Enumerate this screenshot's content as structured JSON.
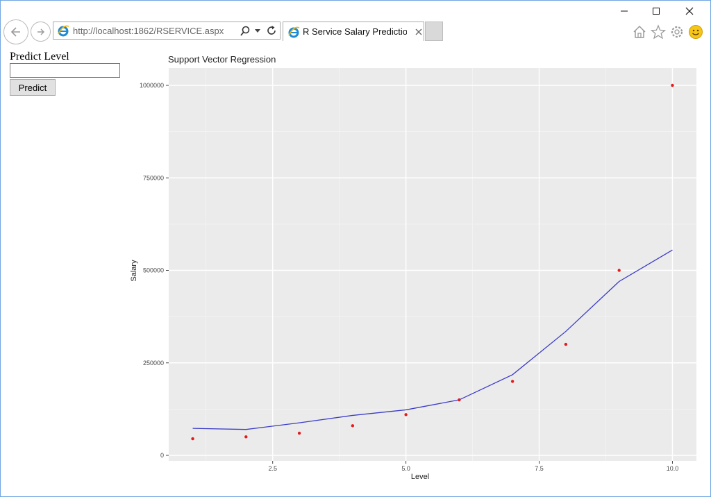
{
  "window": {
    "minimize_icon": "minimize-icon",
    "maximize_icon": "maximize-icon",
    "close_icon": "close-icon"
  },
  "browser": {
    "back_icon": "back-arrow-icon",
    "forward_icon": "forward-arrow-icon",
    "url": "http://localhost:1862/RSERVICE.aspx",
    "tab_title": "R Service Salary Prediction ...",
    "toolbar_icons": [
      "home-icon",
      "star-icon",
      "gear-icon",
      "smiley-icon"
    ]
  },
  "form": {
    "label": "Predict Level",
    "input_value": "",
    "button_label": "Predict"
  },
  "chart_data": {
    "type": "scatter",
    "title": "Support Vector Regression",
    "xlabel": "Level",
    "ylabel": "Salary",
    "xlim": [
      0.55,
      10.45
    ],
    "ylim": [
      0,
      1000000
    ],
    "x_ticks": [
      2.5,
      5.0,
      7.5,
      10.0
    ],
    "x_tick_labels": [
      "2.5",
      "5.0",
      "7.5",
      "10.0"
    ],
    "y_ticks": [
      0,
      250000,
      500000,
      750000,
      1000000
    ],
    "y_tick_labels": [
      "0",
      "250000",
      "500000",
      "750000",
      "1000000"
    ],
    "grid": true,
    "background": "#ebebeb",
    "series": [
      {
        "kind": "points",
        "color": "#e41a1c",
        "x": [
          1,
          2,
          3,
          4,
          5,
          6,
          7,
          8,
          9,
          10
        ],
        "y": [
          45000,
          50000,
          60000,
          80000,
          110000,
          150000,
          200000,
          300000,
          500000,
          1000000
        ]
      },
      {
        "kind": "line",
        "color": "#3b3bc8",
        "x": [
          1,
          2,
          3,
          4,
          5,
          6,
          7,
          8,
          9,
          10
        ],
        "y": [
          73000,
          70000,
          88000,
          108000,
          123000,
          150000,
          218000,
          335000,
          470000,
          555000
        ]
      }
    ]
  }
}
